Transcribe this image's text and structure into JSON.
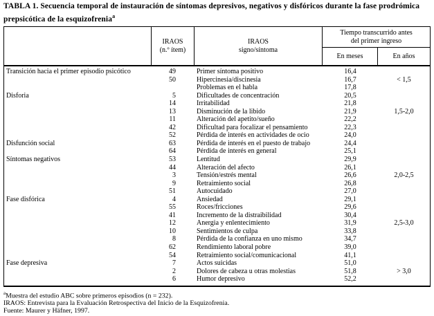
{
  "title": "TABLA 1. Secuencia temporal de instauración de síntomas depresivos, negativos y disfóricos durante la fase prodrómica prepsicótica de la esquizofrenia",
  "title_superscript": "a",
  "table": {
    "headers": {
      "item_line1": "IRAOS",
      "item_line2": "(n.º ítem)",
      "symptom_line1": "IRAOS",
      "symptom_line2": "signo/síntoma",
      "time_group_line1": "Tiempo transcurrido antes",
      "time_group_line2": "del primer ingreso",
      "months": "En meses",
      "years": "En años"
    },
    "rows": [
      {
        "category": "Transición hacia el primer episodio psicótico",
        "item": "49",
        "symptom": "Primer síntoma positivo",
        "months": "16,4",
        "years": ""
      },
      {
        "category": "",
        "item": "50",
        "symptom": "Hipercinesia/discinesia",
        "months": "16,7",
        "years": "< 1,5"
      },
      {
        "category": "",
        "item": "",
        "symptom": "Problemas en el habla",
        "months": "17,8",
        "years": ""
      },
      {
        "category": "Disforia",
        "item": "5",
        "symptom": "Dificultades de concentración",
        "months": "20,5",
        "years": ""
      },
      {
        "category": "",
        "item": "14",
        "symptom": "Irritabilidad",
        "months": "21,8",
        "years": ""
      },
      {
        "category": "",
        "item": "13",
        "symptom": "Disminución de la libido",
        "months": "21,9",
        "years": "1,5-2,0"
      },
      {
        "category": "",
        "item": "11",
        "symptom": "Alteración del apetito/sueño",
        "months": "22,2",
        "years": ""
      },
      {
        "category": "",
        "item": "42",
        "symptom": "Dificultad para focalizar el pensamiento",
        "months": "22,3",
        "years": ""
      },
      {
        "category": "",
        "item": "52",
        "symptom": "Pérdida de interés en actividades de ocio",
        "months": "24,0",
        "years": ""
      },
      {
        "category": "Disfunción social",
        "item": "63",
        "symptom": "Pérdida de interés en el puesto de trabajo",
        "months": "24,4",
        "years": ""
      },
      {
        "category": "",
        "item": "64",
        "symptom": "Pérdida de interés en general",
        "months": "25,1",
        "years": ""
      },
      {
        "category": "Síntomas negativos",
        "item": "53",
        "symptom": "Lentitud",
        "months": "29,9",
        "years": ""
      },
      {
        "category": "",
        "item": "44",
        "symptom": "Alteración del afecto",
        "months": "26,1",
        "years": ""
      },
      {
        "category": "",
        "item": "3",
        "symptom": "Tensión/estrés mental",
        "months": "26,6",
        "years": "2,0-2,5"
      },
      {
        "category": "",
        "item": "9",
        "symptom": "Retraimiento social",
        "months": "26,8",
        "years": ""
      },
      {
        "category": "",
        "item": "51",
        "symptom": "Autocuidado",
        "months": "27,0",
        "years": ""
      },
      {
        "category": "Fase disfórica",
        "item": "4",
        "symptom": "Ansiedad",
        "months": "29,1",
        "years": ""
      },
      {
        "category": "",
        "item": "55",
        "symptom": "Roces/fricciones",
        "months": "29,6",
        "years": ""
      },
      {
        "category": "",
        "item": "41",
        "symptom": "Incremento de la distraibilidad",
        "months": "30,4",
        "years": ""
      },
      {
        "category": "",
        "item": "12",
        "symptom": "Anergia y enlentecimiento",
        "months": "31,9",
        "years": "2,5-3,0"
      },
      {
        "category": "",
        "item": "10",
        "symptom": "Sentimientos de culpa",
        "months": "33,8",
        "years": ""
      },
      {
        "category": "",
        "item": "8",
        "symptom": "Pérdida de la confianza en uno mismo",
        "months": "34,7",
        "years": ""
      },
      {
        "category": "",
        "item": "62",
        "symptom": "Rendimiento laboral pobre",
        "months": "39,0",
        "years": ""
      },
      {
        "category": "",
        "item": "54",
        "symptom": "Retraimiento social/comunicacional",
        "months": "41,1",
        "years": ""
      },
      {
        "category": "Fase depresiva",
        "item": "7",
        "symptom": "Actos suicidas",
        "months": "51,0",
        "years": ""
      },
      {
        "category": "",
        "item": "2",
        "symptom": "Dolores de cabeza u otras molestias",
        "months": "51,8",
        "years": "> 3,0"
      },
      {
        "category": "",
        "item": "6",
        "symptom": "Humor depresivo",
        "months": "52,2",
        "years": ""
      }
    ]
  },
  "footnote_marker": "a",
  "footnotes": [
    "Muestra del estudio ABC sobre primeros episodios (n = 232).",
    "IRAOS: Entrevista para la Evaluación Retrospectiva del Inicio de la Esquizofrenia.",
    "Fuente: Maurer y Häfner, 1997."
  ]
}
